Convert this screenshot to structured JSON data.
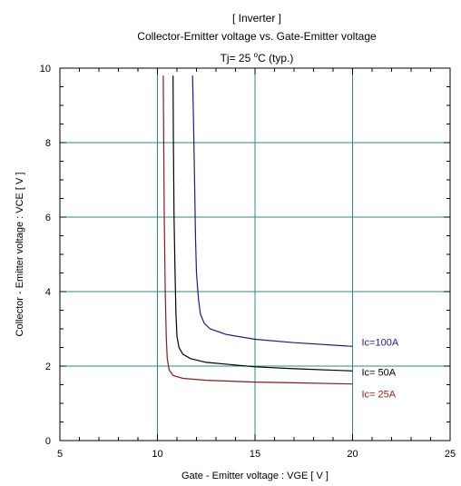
{
  "chart_data": {
    "type": "line",
    "title_lines": [
      "[ Inverter ]",
      "Collector-Emitter voltage  vs. Gate-Emitter voltage"
    ],
    "subtitle": {
      "prefix": "Tj= 25 ",
      "degree": "o",
      "suffix": "C  (typ.)"
    },
    "xlabel": "Gate - Emitter voltage  :  VGE  [ V ]",
    "ylabel": "Collector - Emitter voltage  :  VCE  [ V ]",
    "xlim": [
      5,
      25
    ],
    "ylim": [
      0,
      10
    ],
    "xticks": [
      5,
      10,
      15,
      20,
      25
    ],
    "yticks": [
      0,
      2,
      4,
      6,
      8,
      10
    ],
    "grid": true,
    "series": [
      {
        "name": "Ic=100A",
        "color": "#1a1a8c",
        "points": [
          [
            11.8,
            9.8
          ],
          [
            11.85,
            8.5
          ],
          [
            11.9,
            7.0
          ],
          [
            11.95,
            5.5
          ],
          [
            12.0,
            4.5
          ],
          [
            12.1,
            3.8
          ],
          [
            12.2,
            3.4
          ],
          [
            12.4,
            3.15
          ],
          [
            12.7,
            3.0
          ],
          [
            13.5,
            2.85
          ],
          [
            15,
            2.72
          ],
          [
            17,
            2.63
          ],
          [
            20,
            2.53
          ]
        ]
      },
      {
        "name": "Ic= 50A",
        "color": "#000000",
        "points": [
          [
            10.8,
            9.8
          ],
          [
            10.82,
            8.0
          ],
          [
            10.85,
            6.0
          ],
          [
            10.9,
            4.5
          ],
          [
            10.95,
            3.4
          ],
          [
            11.0,
            2.8
          ],
          [
            11.1,
            2.5
          ],
          [
            11.3,
            2.32
          ],
          [
            11.7,
            2.2
          ],
          [
            12.5,
            2.1
          ],
          [
            15,
            1.98
          ],
          [
            17,
            1.93
          ],
          [
            20,
            1.87
          ]
        ]
      },
      {
        "name": "Ic= 25A",
        "color": "#8c1a1a",
        "points": [
          [
            10.3,
            9.8
          ],
          [
            10.32,
            8.0
          ],
          [
            10.35,
            6.0
          ],
          [
            10.4,
            4.0
          ],
          [
            10.45,
            2.8
          ],
          [
            10.5,
            2.2
          ],
          [
            10.6,
            1.9
          ],
          [
            10.8,
            1.75
          ],
          [
            11.3,
            1.67
          ],
          [
            12.5,
            1.62
          ],
          [
            15,
            1.57
          ],
          [
            17,
            1.55
          ],
          [
            20,
            1.52
          ]
        ]
      }
    ]
  }
}
